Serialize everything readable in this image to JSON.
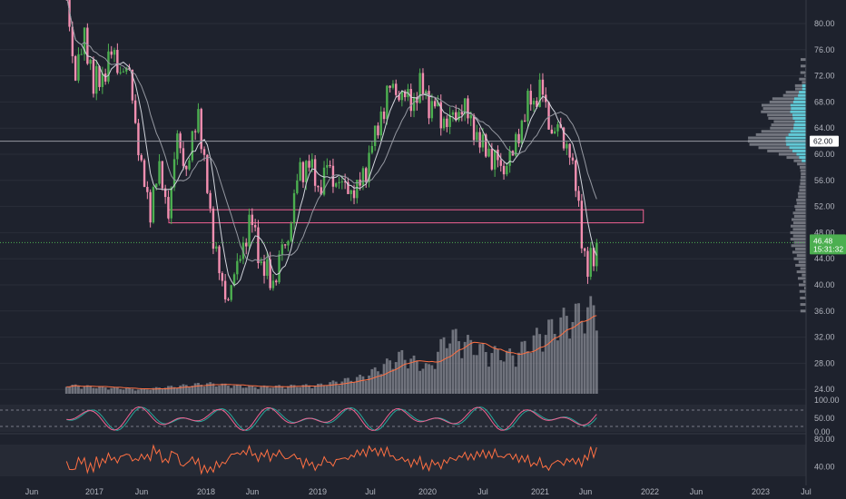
{
  "colors": {
    "background": "#1e222d",
    "up": "#4caf50",
    "down": "#f48fb1",
    "ma_fast": "#d1d4dc",
    "ma_slow": "#9598a1",
    "volume": "#b2b5be",
    "volume_ma": "#ff7043",
    "stoch_k": "#26a69a",
    "stoch_d": "#f06292",
    "rsi": "#ff7043",
    "zone_border": "#f06292",
    "vp_value_area": "#5ed3e0",
    "vp_bar": "#9598a1",
    "last_price_bg": "#4caf50",
    "level_bg": "#ffffff"
  },
  "chart_data": [
    {
      "type": "candlestick",
      "panel": "price",
      "y_axis_ticks": [
        "80.00",
        "76.00",
        "72.00",
        "68.00",
        "64.00",
        "60.00",
        "56.00",
        "52.00",
        "48.00",
        "44.00",
        "40.00",
        "36.00",
        "32.00",
        "28.00",
        "24.00"
      ],
      "ylim": [
        24,
        82
      ],
      "x_axis_ticks": [
        "Jun",
        "2017",
        "Jun",
        "2018",
        "Jun",
        "2019",
        "Jul",
        "2020",
        "Jul",
        "2021",
        "Jun",
        "2022",
        "Jun",
        "2023",
        "Jul"
      ],
      "last_price": "46.48",
      "countdown": "15:31:32",
      "horizontal_level": "62.00",
      "zone": {
        "low": 49.5,
        "high": 51.5,
        "x_start": "2017-09",
        "x_end": "2021-12"
      },
      "anchors": [
        [
          "2016-10",
          83
        ],
        [
          "2016-11",
          72
        ],
        [
          "2016-12",
          78
        ],
        [
          "2017-01",
          70
        ],
        [
          "2017-02",
          73
        ],
        [
          "2017-03",
          75
        ],
        [
          "2017-04",
          73
        ],
        [
          "2017-05",
          71
        ],
        [
          "2017-06",
          57
        ],
        [
          "2017-07",
          52
        ],
        [
          "2017-08",
          57
        ],
        [
          "2017-09",
          51
        ],
        [
          "2017-10",
          64
        ],
        [
          "2017-11",
          56
        ],
        [
          "2017-12",
          68
        ],
        [
          "2018-01",
          56
        ],
        [
          "2018-02",
          45
        ],
        [
          "2018-03",
          38
        ],
        [
          "2018-04",
          40
        ],
        [
          "2018-05",
          47
        ],
        [
          "2018-06",
          49
        ],
        [
          "2018-07",
          43
        ],
        [
          "2018-08",
          40
        ],
        [
          "2018-09",
          44
        ],
        [
          "2018-10",
          49
        ],
        [
          "2018-11",
          57
        ],
        [
          "2018-12",
          59
        ],
        [
          "2019-01",
          54
        ],
        [
          "2019-02",
          58
        ],
        [
          "2019-03",
          56
        ],
        [
          "2019-04",
          55
        ],
        [
          "2019-05",
          54
        ],
        [
          "2019-06",
          57
        ],
        [
          "2019-07",
          62
        ],
        [
          "2019-08",
          67
        ],
        [
          "2019-09",
          71
        ],
        [
          "2019-10",
          69
        ],
        [
          "2019-11",
          68
        ],
        [
          "2019-12",
          70
        ],
        [
          "2020-01",
          68
        ],
        [
          "2020-02",
          66
        ],
        [
          "2020-03",
          65
        ],
        [
          "2020-04",
          66
        ],
        [
          "2020-05",
          67
        ],
        [
          "2020-06",
          63
        ],
        [
          "2020-07",
          61
        ],
        [
          "2020-08",
          59
        ],
        [
          "2020-09",
          58
        ],
        [
          "2020-10",
          60
        ],
        [
          "2020-11",
          65
        ],
        [
          "2020-12",
          68
        ],
        [
          "2021-01",
          70
        ],
        [
          "2021-02",
          64
        ],
        [
          "2021-03",
          63
        ],
        [
          "2021-04",
          61
        ],
        [
          "2021-05",
          52
        ],
        [
          "2021-06",
          41
        ],
        [
          "2021-07",
          46.48
        ]
      ]
    },
    {
      "type": "volume",
      "panel": "price",
      "anchors": [
        [
          "2016-10",
          0.1
        ],
        [
          "2017-06",
          0.05
        ],
        [
          "2018-01",
          0.12
        ],
        [
          "2018-06",
          0.08
        ],
        [
          "2019-01",
          0.1
        ],
        [
          "2019-06",
          0.2
        ],
        [
          "2019-10",
          0.45
        ],
        [
          "2020-01",
          0.3
        ],
        [
          "2020-03",
          0.7
        ],
        [
          "2020-07",
          0.5
        ],
        [
          "2020-10",
          0.45
        ],
        [
          "2021-01",
          0.7
        ],
        [
          "2021-04",
          0.9
        ],
        [
          "2021-07",
          1.0
        ]
      ]
    },
    {
      "type": "line",
      "panel": "stochastic",
      "y_axis_ticks": [
        "100.00",
        "50.00",
        "0.00"
      ],
      "ylim": [
        0,
        100
      ],
      "guides": [
        80,
        20
      ]
    },
    {
      "type": "line",
      "panel": "rsi",
      "y_axis_ticks": [
        "80.00",
        "40.00"
      ],
      "ylim": [
        20,
        85
      ],
      "guides": [
        70,
        30
      ]
    }
  ]
}
